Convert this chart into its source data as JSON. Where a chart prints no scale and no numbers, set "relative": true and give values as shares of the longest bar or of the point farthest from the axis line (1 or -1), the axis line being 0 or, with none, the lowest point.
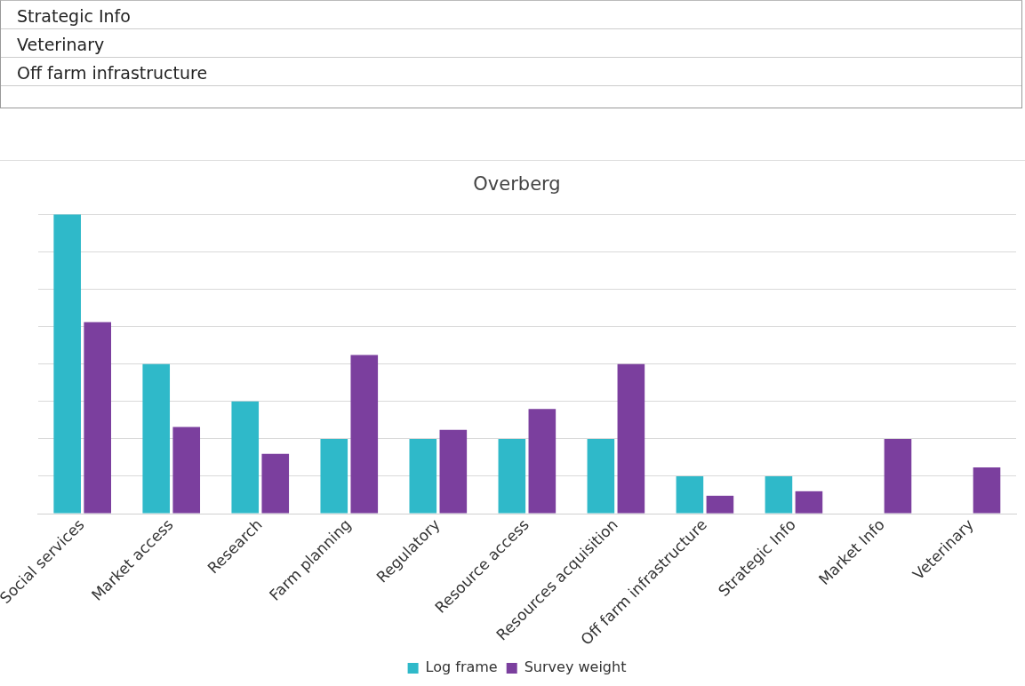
{
  "chart_data": {
    "type": "bar",
    "title": "Overberg",
    "relative": true,
    "grid": "y",
    "legend": "bottom",
    "annotations": [
      "Strategic Info",
      "Veterinary",
      "Off farm infrastructure"
    ],
    "categories": [
      "Social services",
      "Market access",
      "Research",
      "Farm planning",
      "Regulatory",
      "Resource access",
      "Resources acquisition",
      "Off farm infrastructure",
      "Strategic Info",
      "Market Info",
      "Veterinary"
    ],
    "series": [
      {
        "name": "Log frame",
        "color": "#2fb9c9",
        "values": [
          1,
          0.5,
          0.375,
          0.25,
          0.25,
          0.25,
          0.25,
          0.125,
          0.125,
          0,
          0
        ]
      },
      {
        "name": "Survey weight",
        "color": "#7b3f9e",
        "values": [
          0.64,
          0.29,
          0.2,
          0.53,
          0.28,
          0.35,
          0.5,
          0.06,
          0.075,
          0.25,
          0.155
        ]
      }
    ]
  }
}
